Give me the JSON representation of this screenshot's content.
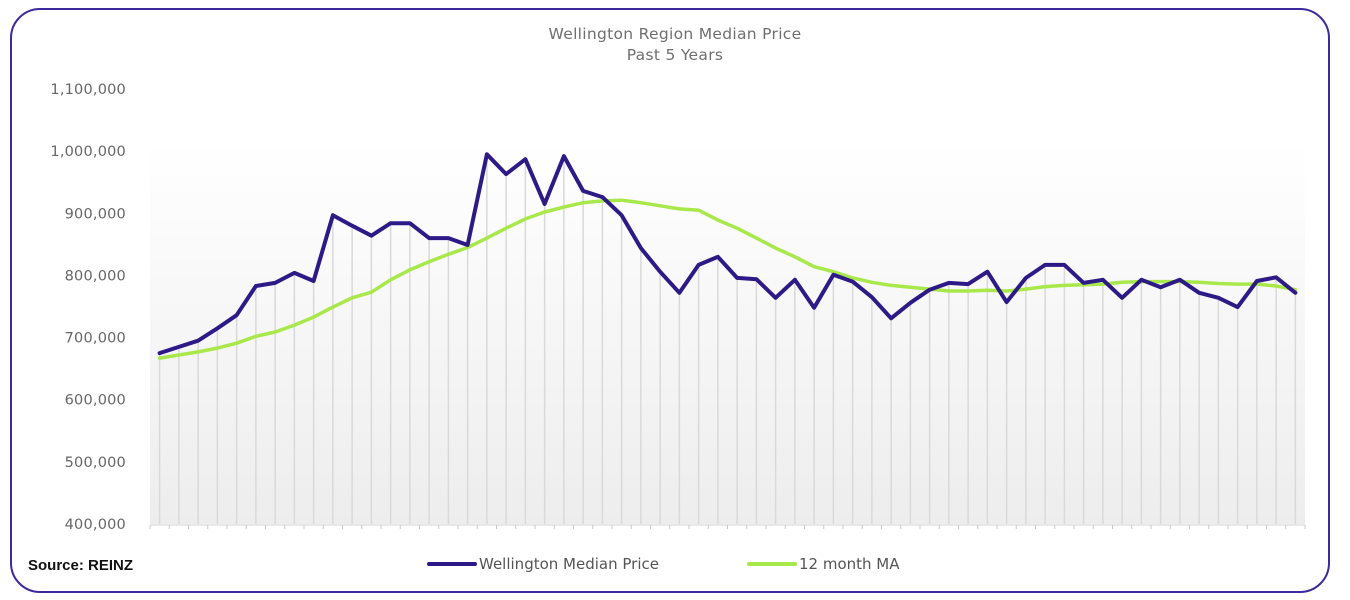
{
  "chart_data": {
    "type": "line",
    "title": "Wellington Region Median Price",
    "subtitle": "Past 5 Years",
    "xlabel": "",
    "ylabel": "",
    "ylim": [
      400000,
      1100000
    ],
    "yticks": [
      "1,100,000",
      "1,000,000",
      "900,000",
      "800,000",
      "700,000",
      "600,000",
      "500,000",
      "400,000"
    ],
    "ytick_values": [
      1100000,
      1000000,
      900000,
      800000,
      700000,
      600000,
      500000,
      400000
    ],
    "x_count": 60,
    "x_description": "Monthly observations over past 5 years (no x tick labels shown)",
    "grid": "vertical category lines",
    "legend_position": "bottom-center",
    "series": [
      {
        "name": "Wellington Median Price",
        "color": "#2e1a87",
        "values": [
          675000,
          685000,
          695000,
          715000,
          736000,
          783000,
          788000,
          804000,
          791000,
          897000,
          880000,
          864000,
          884000,
          884000,
          860000,
          860000,
          849000,
          995000,
          963000,
          987000,
          915000,
          992000,
          936000,
          926000,
          897000,
          844000,
          806000,
          772000,
          817000,
          830000,
          796000,
          794000,
          764000,
          793000,
          748000,
          801000,
          790000,
          765000,
          731000,
          756000,
          777000,
          788000,
          786000,
          806000,
          757000,
          796000,
          817000,
          817000,
          788000,
          793000,
          764000,
          793000,
          781000,
          793000,
          772000,
          764000,
          749000,
          791000,
          797000,
          772000
        ]
      },
      {
        "name": "12 month MA",
        "color": "#a8e84a",
        "values": [
          667000,
          672000,
          677000,
          683000,
          691000,
          702000,
          709000,
          720000,
          733000,
          749000,
          764000,
          773000,
          793000,
          809000,
          822000,
          834000,
          845000,
          860000,
          876000,
          891000,
          902000,
          910000,
          917000,
          920000,
          921000,
          917000,
          912000,
          907000,
          905000,
          889000,
          876000,
          860000,
          844000,
          830000,
          814000,
          806000,
          796000,
          789000,
          784000,
          781000,
          778000,
          775000,
          775000,
          776000,
          775000,
          778000,
          782000,
          784000,
          785000,
          786000,
          789000,
          790000,
          790000,
          790000,
          789000,
          787000,
          786000,
          786000,
          783000,
          777000
        ]
      }
    ],
    "source": "Source: REINZ"
  },
  "colors": {
    "frame_border": "#3b2a9e",
    "title_text": "#6f6f6f",
    "grid_line": "#d9d9d9",
    "plot_bg_top": "#ffffff",
    "plot_bg_bottom": "#eeeeee"
  }
}
